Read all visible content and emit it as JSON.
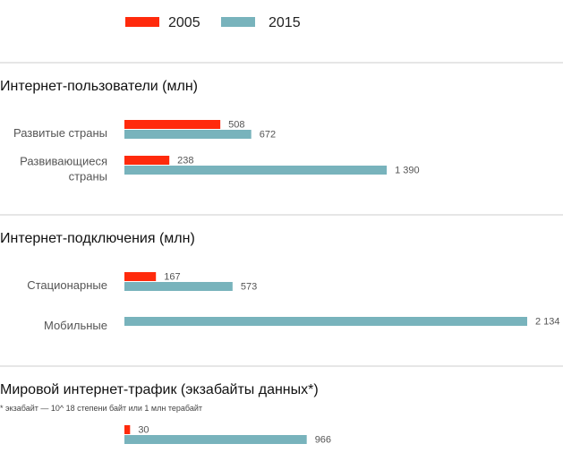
{
  "legend": [
    {
      "label": "2005",
      "color": "#ff2a0c"
    },
    {
      "label": "2015",
      "color": "#78b3bc"
    }
  ],
  "chart_data": [
    {
      "type": "bar",
      "title": "Интернет-пользователи (млн)",
      "categories": [
        [
          "Развитые страны"
        ],
        [
          "Развивающиеся",
          "страны"
        ]
      ],
      "series": [
        {
          "name": "2005",
          "values": [
            508,
            238
          ],
          "labels": [
            "508",
            "238"
          ]
        },
        {
          "name": "2015",
          "values": [
            672,
            1390
          ],
          "labels": [
            "672",
            "1 390"
          ]
        }
      ]
    },
    {
      "type": "bar",
      "title": "Интернет-подключения (млн)",
      "categories": [
        [
          "Стационарные"
        ],
        [
          "Мобильные"
        ]
      ],
      "series": [
        {
          "name": "2005",
          "values": [
            167,
            null
          ],
          "labels": [
            "167",
            ""
          ]
        },
        {
          "name": "2015",
          "values": [
            573,
            2134
          ],
          "labels": [
            "573",
            "2 134"
          ]
        }
      ]
    },
    {
      "type": "bar",
      "title": "Мировой интернет-трафик (экзабайты данных*)",
      "note": "* экзабайт — 10^ 18 степени байт или 1 млн терабайт",
      "categories": [
        [
          ""
        ]
      ],
      "series": [
        {
          "name": "2005",
          "values": [
            30
          ],
          "labels": [
            "30"
          ]
        },
        {
          "name": "2015",
          "values": [
            966
          ],
          "labels": [
            "966"
          ]
        }
      ]
    }
  ]
}
